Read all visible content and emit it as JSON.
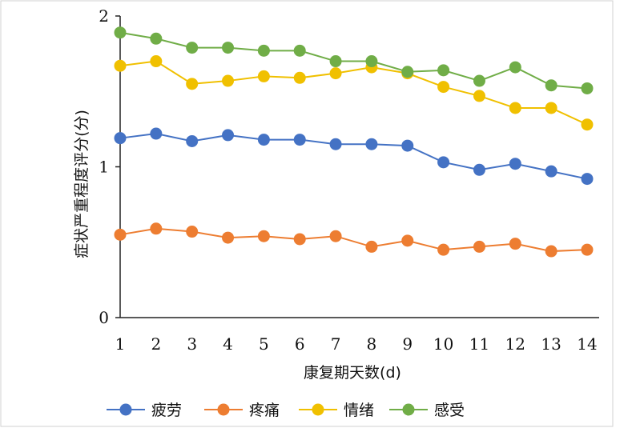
{
  "chart_data": {
    "type": "line",
    "x": [
      1,
      2,
      3,
      4,
      5,
      6,
      7,
      8,
      9,
      10,
      11,
      12,
      13,
      14
    ],
    "xlabel": "康复期天数(d)",
    "ylabel": "症状严重程度评分(分)",
    "ylim": [
      0,
      2
    ],
    "yticks": [
      "0",
      "1",
      "2"
    ],
    "xticks": [
      "1",
      "2",
      "3",
      "4",
      "5",
      "6",
      "7",
      "8",
      "9",
      "10",
      "11",
      "12",
      "13",
      "14"
    ],
    "grid": false,
    "legend_position": "bottom",
    "series": [
      {
        "name": "疲劳",
        "color": "#4472C4",
        "values": [
          1.19,
          1.22,
          1.17,
          1.21,
          1.18,
          1.18,
          1.15,
          1.15,
          1.14,
          1.03,
          0.98,
          1.02,
          0.97,
          0.92
        ]
      },
      {
        "name": "疼痛",
        "color": "#ED7D31",
        "values": [
          0.55,
          0.59,
          0.57,
          0.53,
          0.54,
          0.52,
          0.54,
          0.47,
          0.51,
          0.45,
          0.47,
          0.49,
          0.44,
          0.45
        ]
      },
      {
        "name": "情绪",
        "color": "#F0C000",
        "values": [
          1.67,
          1.7,
          1.55,
          1.57,
          1.6,
          1.59,
          1.62,
          1.66,
          1.62,
          1.53,
          1.47,
          1.39,
          1.39,
          1.28
        ]
      },
      {
        "name": "感受",
        "color": "#70AD47",
        "values": [
          1.89,
          1.85,
          1.79,
          1.79,
          1.77,
          1.77,
          1.7,
          1.7,
          1.63,
          1.64,
          1.57,
          1.66,
          1.54,
          1.52
        ]
      }
    ]
  }
}
